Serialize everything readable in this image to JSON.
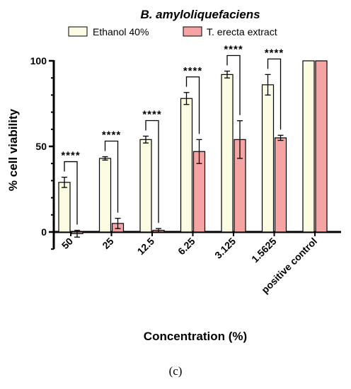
{
  "panel_label": "(c)",
  "colors": {
    "ethanol_fill": "#fcfce3",
    "extract_fill": "#f5a3a3",
    "stroke": "#000000"
  },
  "chart_data": {
    "type": "bar",
    "title": "B. amyloliquefaciens",
    "xlabel": "Concentration (%)",
    "ylabel": "% cell viability",
    "ylim": [
      -10,
      100
    ],
    "yticks": [
      0,
      50,
      100
    ],
    "legend_position": "top",
    "categories": [
      "50",
      "25",
      "12.5",
      "6.25",
      "3.125",
      "1.5625",
      "positive control"
    ],
    "series": [
      {
        "name": "Ethanol 40%",
        "values": [
          29,
          43,
          54,
          78,
          92,
          86,
          100
        ],
        "errors": [
          3,
          1,
          2,
          3.5,
          2,
          6,
          0
        ]
      },
      {
        "name": "T. erecta extract",
        "values": [
          -1,
          5,
          1,
          47,
          54,
          55,
          100
        ],
        "errors": [
          2,
          3,
          1,
          7,
          11,
          1.5,
          0
        ]
      }
    ],
    "annotations": [
      {
        "category": "50",
        "text": "****"
      },
      {
        "category": "25",
        "text": "****"
      },
      {
        "category": "12.5",
        "text": "****"
      },
      {
        "category": "6.25",
        "text": "****"
      },
      {
        "category": "3.125",
        "text": "****"
      },
      {
        "category": "1.5625",
        "text": "****"
      }
    ]
  }
}
